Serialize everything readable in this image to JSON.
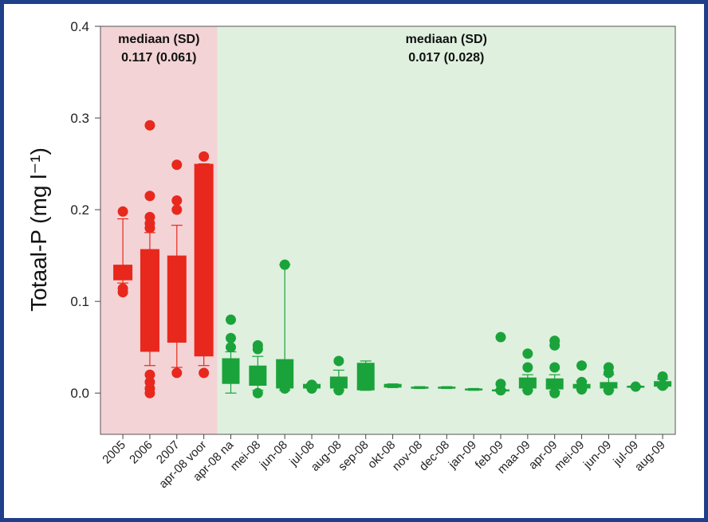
{
  "chart_data": {
    "type": "box",
    "xlabel": "",
    "ylabel": "Totaal-P (mg l⁻¹)",
    "ylim": [
      -0.045,
      0.4
    ],
    "yticks": [
      "0.0",
      "0.1",
      "0.2",
      "0.3",
      "0.4"
    ],
    "grid": false,
    "regions": [
      {
        "name": "voor",
        "color": "#f3d3d5",
        "annotation_title": "mediaan (SD)",
        "annotation_value": "0.117 (0.061)",
        "categories": [
          "2005",
          "2006",
          "2007",
          "apr-08 voor"
        ]
      },
      {
        "name": "na",
        "color": "#dff0df",
        "annotation_title": "mediaan (SD)",
        "annotation_value": "0.017 (0.028)",
        "categories": [
          "apr-08 na",
          "mei-08",
          "jun-08",
          "jul-08",
          "aug-08",
          "sep-08",
          "okt-08",
          "nov-08",
          "dec-08",
          "jan-09",
          "feb-09",
          "maa-09",
          "apr-09",
          "mei-09",
          "jun-09",
          "jul-09",
          "aug-09"
        ]
      }
    ],
    "categories": [
      "2005",
      "2006",
      "2007",
      "apr-08 voor",
      "apr-08 na",
      "mei-08",
      "jun-08",
      "jul-08",
      "aug-08",
      "sep-08",
      "okt-08",
      "nov-08",
      "dec-08",
      "jan-09",
      "feb-09",
      "maa-09",
      "apr-09",
      "mei-09",
      "jun-09",
      "jul-09",
      "aug-09"
    ],
    "colors": {
      "voor": "#e8281c",
      "na": "#1aa33a"
    },
    "boxes": [
      {
        "cat": "2005",
        "group": "voor",
        "wlo": 0.12,
        "q1": 0.123,
        "med": 0.128,
        "q3": 0.14,
        "whi": 0.19,
        "out": [
          0.198,
          0.11,
          0.114
        ]
      },
      {
        "cat": "2006",
        "group": "voor",
        "wlo": 0.03,
        "q1": 0.045,
        "med": 0.09,
        "q3": 0.157,
        "whi": 0.175,
        "out": [
          0.292,
          0.215,
          0.192,
          0.185,
          0.18,
          0.02,
          0.012,
          0.005,
          0.0
        ]
      },
      {
        "cat": "2007",
        "group": "voor",
        "wlo": 0.028,
        "q1": 0.055,
        "med": 0.1,
        "q3": 0.15,
        "whi": 0.183,
        "out": [
          0.249,
          0.21,
          0.2,
          0.022
        ]
      },
      {
        "cat": "apr-08 voor",
        "group": "voor",
        "wlo": 0.03,
        "q1": 0.04,
        "med": 0.065,
        "q3": 0.25,
        "whi": 0.25,
        "out": [
          0.258,
          0.022
        ]
      },
      {
        "cat": "apr-08 na",
        "group": "na",
        "wlo": 0.0,
        "q1": 0.01,
        "med": 0.02,
        "q3": 0.038,
        "whi": 0.045,
        "out": [
          0.08,
          0.06,
          0.05
        ]
      },
      {
        "cat": "mei-08",
        "group": "na",
        "wlo": 0.003,
        "q1": 0.008,
        "med": 0.02,
        "q3": 0.03,
        "whi": 0.04,
        "out": [
          0.052,
          0.048,
          0.0
        ]
      },
      {
        "cat": "jun-08",
        "group": "na",
        "wlo": 0.003,
        "q1": 0.005,
        "med": 0.015,
        "q3": 0.037,
        "whi": 0.14,
        "out": [
          0.14,
          0.005
        ]
      },
      {
        "cat": "jul-08",
        "group": "na",
        "wlo": 0.005,
        "q1": 0.005,
        "med": 0.007,
        "q3": 0.01,
        "whi": 0.01,
        "out": [
          0.005,
          0.009
        ]
      },
      {
        "cat": "aug-08",
        "group": "na",
        "wlo": 0.003,
        "q1": 0.005,
        "med": 0.01,
        "q3": 0.018,
        "whi": 0.025,
        "out": [
          0.035,
          0.003
        ]
      },
      {
        "cat": "sep-08",
        "group": "na",
        "wlo": 0.003,
        "q1": 0.003,
        "med": 0.01,
        "q3": 0.033,
        "whi": 0.035,
        "out": []
      },
      {
        "cat": "okt-08",
        "group": "na",
        "wlo": 0.006,
        "q1": 0.006,
        "med": 0.008,
        "q3": 0.01,
        "whi": 0.01,
        "out": []
      },
      {
        "cat": "nov-08",
        "group": "na",
        "wlo": 0.005,
        "q1": 0.005,
        "med": 0.006,
        "q3": 0.007,
        "whi": 0.007,
        "out": []
      },
      {
        "cat": "dec-08",
        "group": "na",
        "wlo": 0.005,
        "q1": 0.005,
        "med": 0.006,
        "q3": 0.007,
        "whi": 0.007,
        "out": []
      },
      {
        "cat": "jan-09",
        "group": "na",
        "wlo": 0.003,
        "q1": 0.003,
        "med": 0.004,
        "q3": 0.005,
        "whi": 0.005,
        "out": []
      },
      {
        "cat": "feb-09",
        "group": "na",
        "wlo": 0.002,
        "q1": 0.002,
        "med": 0.003,
        "q3": 0.004,
        "whi": 0.004,
        "out": [
          0.061,
          0.01,
          0.003
        ]
      },
      {
        "cat": "maa-09",
        "group": "na",
        "wlo": 0.003,
        "q1": 0.005,
        "med": 0.01,
        "q3": 0.017,
        "whi": 0.02,
        "out": [
          0.043,
          0.028,
          0.003
        ]
      },
      {
        "cat": "apr-09",
        "group": "na",
        "wlo": 0.002,
        "q1": 0.004,
        "med": 0.009,
        "q3": 0.016,
        "whi": 0.02,
        "out": [
          0.057,
          0.052,
          0.028,
          0.0
        ]
      },
      {
        "cat": "mei-09",
        "group": "na",
        "wlo": 0.004,
        "q1": 0.005,
        "med": 0.007,
        "q3": 0.01,
        "whi": 0.013,
        "out": [
          0.03,
          0.012,
          0.004
        ]
      },
      {
        "cat": "jun-09",
        "group": "na",
        "wlo": 0.003,
        "q1": 0.005,
        "med": 0.01,
        "q3": 0.012,
        "whi": 0.02,
        "out": [
          0.028,
          0.022,
          0.003
        ]
      },
      {
        "cat": "jul-09",
        "group": "na",
        "wlo": 0.006,
        "q1": 0.006,
        "med": 0.007,
        "q3": 0.008,
        "whi": 0.008,
        "out": [
          0.007
        ]
      },
      {
        "cat": "aug-09",
        "group": "na",
        "wlo": 0.006,
        "q1": 0.007,
        "med": 0.01,
        "q3": 0.013,
        "whi": 0.015,
        "out": [
          0.018,
          0.008
        ]
      }
    ]
  }
}
